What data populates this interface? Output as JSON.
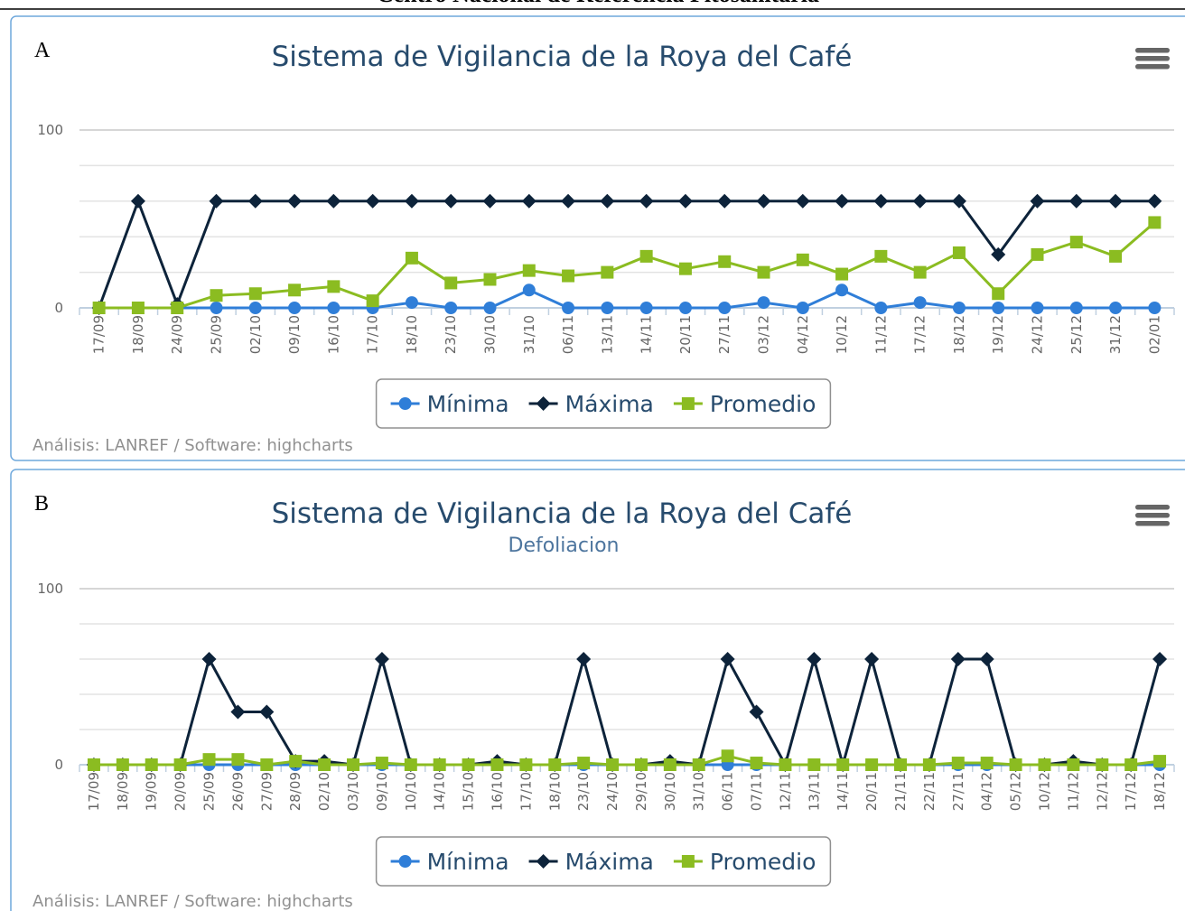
{
  "header": "Centro Nacional de Referencia Fitosanitaria",
  "chart_data": [
    {
      "type": "line",
      "label": "A",
      "title": "Sistema de Vigilancia de la Roya del Café",
      "categories": [
        "17/09",
        "18/09",
        "24/09",
        "25/09",
        "02/10",
        "09/10",
        "16/10",
        "17/10",
        "18/10",
        "23/10",
        "30/10",
        "31/10",
        "06/11",
        "13/11",
        "14/11",
        "20/11",
        "27/11",
        "03/12",
        "04/12",
        "10/12",
        "11/12",
        "17/12",
        "18/12",
        "19/12",
        "24/12",
        "25/12",
        "31/12",
        "02/01"
      ],
      "series": [
        {
          "name": "Mínima",
          "color": "#2f7ed8",
          "marker": "circle",
          "values": [
            0,
            0,
            0,
            0,
            0,
            0,
            0,
            0,
            3,
            0,
            0,
            10,
            0,
            0,
            0,
            0,
            0,
            3,
            0,
            10,
            0,
            3,
            0,
            0,
            0,
            0,
            0,
            0
          ]
        },
        {
          "name": "Máxima",
          "color": "#0d233a",
          "marker": "diamond",
          "values": [
            0,
            60,
            2,
            60,
            60,
            60,
            60,
            60,
            60,
            60,
            60,
            60,
            60,
            60,
            60,
            60,
            60,
            60,
            60,
            60,
            60,
            60,
            60,
            30,
            60,
            60,
            60,
            60
          ]
        },
        {
          "name": "Promedio",
          "color": "#8bbc21",
          "marker": "square",
          "values": [
            0,
            0,
            0,
            7,
            8,
            10,
            12,
            4,
            28,
            14,
            16,
            21,
            18,
            20,
            29,
            22,
            26,
            20,
            27,
            19,
            29,
            20,
            31,
            8,
            30,
            37,
            29,
            48
          ]
        }
      ],
      "ylim": [
        0,
        100
      ],
      "yticks": [
        0,
        100
      ],
      "minor_grid": [
        20,
        40,
        60,
        80
      ],
      "grid": true,
      "legend": "bottom",
      "credits": "Análisis: LANREF / Software: highcharts"
    },
    {
      "type": "line",
      "label": "B",
      "title": "Sistema de Vigilancia de la Roya del Café",
      "subtitle": "Defoliacion",
      "categories": [
        "17/09",
        "18/09",
        "19/09",
        "20/09",
        "25/09",
        "26/09",
        "27/09",
        "28/09",
        "02/10",
        "03/10",
        "09/10",
        "10/10",
        "14/10",
        "15/10",
        "16/10",
        "17/10",
        "18/10",
        "23/10",
        "24/10",
        "29/10",
        "30/10",
        "31/10",
        "06/11",
        "07/11",
        "12/11",
        "13/11",
        "14/11",
        "20/11",
        "21/11",
        "22/11",
        "27/11",
        "04/12",
        "05/12",
        "10/12",
        "11/12",
        "12/12",
        "17/12",
        "18/12"
      ],
      "series": [
        {
          "name": "Mínima",
          "color": "#2f7ed8",
          "marker": "circle",
          "values": [
            0,
            0,
            0,
            0,
            0,
            0,
            0,
            0,
            0,
            0,
            0,
            0,
            0,
            0,
            0,
            0,
            0,
            0,
            0,
            0,
            0,
            0,
            0,
            0,
            0,
            0,
            0,
            0,
            0,
            0,
            0,
            0,
            0,
            0,
            0,
            0,
            0,
            0
          ]
        },
        {
          "name": "Máxima",
          "color": "#0d233a",
          "marker": "diamond",
          "values": [
            0,
            0,
            0,
            0,
            60,
            30,
            30,
            2,
            2,
            0,
            60,
            0,
            0,
            0,
            2,
            0,
            0,
            60,
            0,
            0,
            2,
            0,
            60,
            30,
            0,
            60,
            0,
            60,
            0,
            0,
            60,
            60,
            0,
            0,
            2,
            0,
            0,
            60
          ]
        },
        {
          "name": "Promedio",
          "color": "#8bbc21",
          "marker": "square",
          "values": [
            0,
            0,
            0,
            0,
            3,
            3,
            0,
            2,
            0,
            0,
            1,
            0,
            0,
            0,
            0,
            0,
            0,
            1,
            0,
            0,
            0,
            0,
            5,
            1,
            0,
            0,
            0,
            0,
            0,
            0,
            1,
            1,
            0,
            0,
            0,
            0,
            0,
            2
          ]
        }
      ],
      "ylim": [
        0,
        100
      ],
      "yticks": [
        0,
        100
      ],
      "minor_grid": [
        20,
        40,
        60,
        80
      ],
      "grid": true,
      "legend": "bottom",
      "credits": "Análisis: LANREF / Software: highcharts"
    }
  ]
}
